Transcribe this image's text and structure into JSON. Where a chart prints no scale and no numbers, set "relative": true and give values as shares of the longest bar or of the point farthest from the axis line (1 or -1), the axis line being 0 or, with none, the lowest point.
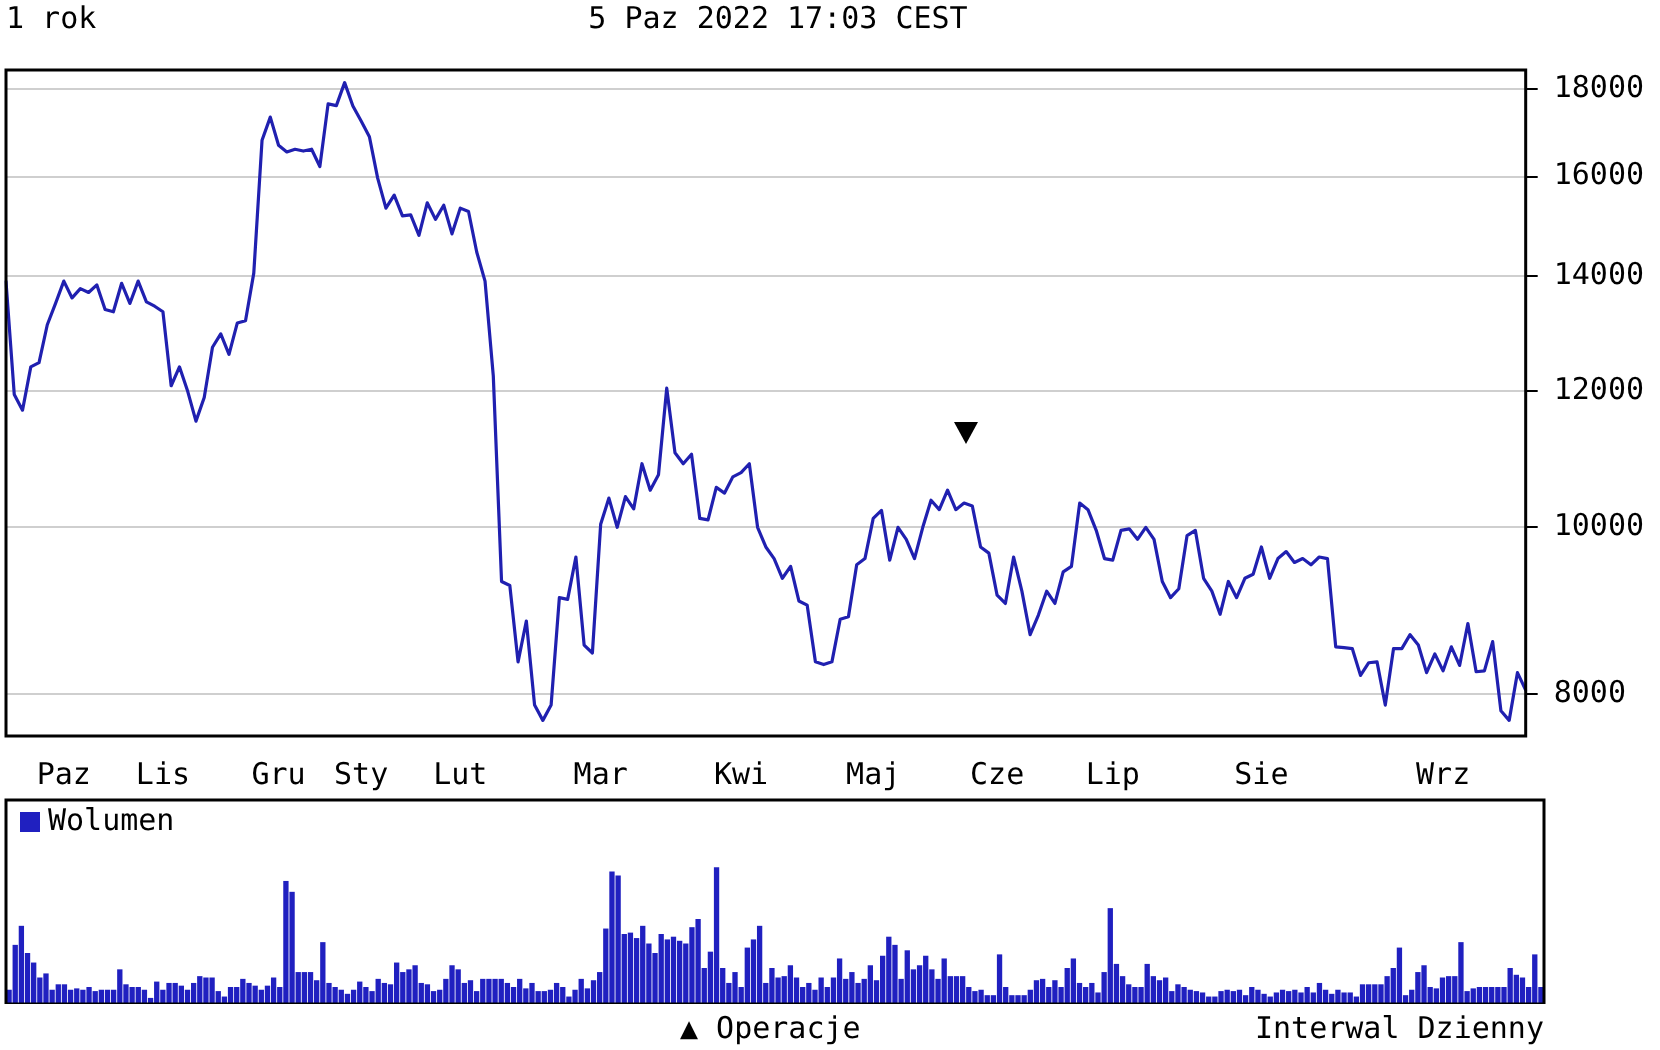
{
  "chart_data": [
    {
      "type": "line",
      "title": "1 rok",
      "subtitle": "5 Paz 2022 17:03 CEST",
      "categories": [
        null,
        null,
        null,
        null,
        null,
        null,
        null,
        "Paz",
        null,
        null,
        null,
        null,
        null,
        null,
        null,
        null,
        null,
        null,
        null,
        "Lis",
        null,
        null,
        null,
        null,
        null,
        null,
        null,
        null,
        null,
        null,
        null,
        null,
        null,
        "Gru",
        null,
        null,
        null,
        null,
        null,
        null,
        null,
        null,
        null,
        "Sty",
        null,
        null,
        null,
        null,
        null,
        null,
        null,
        null,
        null,
        null,
        null,
        "Lut",
        null,
        null,
        null,
        null,
        null,
        null,
        null,
        null,
        null,
        null,
        null,
        null,
        null,
        null,
        null,
        null,
        "Mar",
        null,
        null,
        null,
        null,
        null,
        null,
        null,
        null,
        null,
        null,
        null,
        null,
        null,
        null,
        null,
        null,
        "Kwi",
        null,
        null,
        null,
        null,
        null,
        null,
        null,
        null,
        null,
        null,
        null,
        null,
        null,
        null,
        null,
        "Maj",
        null,
        null,
        null,
        null,
        null,
        null,
        null,
        null,
        null,
        null,
        null,
        null,
        null,
        null,
        "Cze",
        null,
        null,
        null,
        null,
        null,
        null,
        null,
        null,
        null,
        null,
        null,
        null,
        null,
        "Lip",
        null,
        null,
        null,
        null,
        null,
        null,
        null,
        null,
        null,
        null,
        null,
        null,
        null,
        null,
        null,
        null,
        null,
        "Sie",
        null,
        null,
        null,
        null,
        null,
        null,
        null,
        null,
        null,
        null,
        null,
        null,
        null,
        null,
        null,
        null,
        null,
        null,
        null,
        null,
        null,
        "Wrz",
        null,
        null,
        null,
        null,
        null,
        null,
        null,
        null,
        null,
        null
      ],
      "series": [
        {
          "color": "#2020b0",
          "values": [
            13900,
            11950,
            11700,
            12400,
            12470,
            13120,
            13500,
            13910,
            13600,
            13770,
            13700,
            13840,
            13390,
            13350,
            13870,
            13500,
            13910,
            13530,
            13450,
            13350,
            12090,
            12400,
            12000,
            11530,
            11900,
            12730,
            12960,
            12610,
            13150,
            13190,
            14060,
            16800,
            17330,
            16690,
            16540,
            16600,
            16560,
            16600,
            16220,
            17640,
            17600,
            18150,
            17590,
            17240,
            16880,
            15970,
            15340,
            15610,
            15180,
            15200,
            14790,
            15450,
            15110,
            15400,
            14820,
            15340,
            15270,
            14460,
            13910,
            12250,
            9300,
            9250,
            8350,
            8820,
            7880,
            7720,
            7880,
            9100,
            9080,
            9610,
            8540,
            8450,
            10040,
            10400,
            10000,
            10420,
            10250,
            10890,
            10510,
            10730,
            12050,
            11050,
            10890,
            11030,
            10120,
            10100,
            10550,
            10470,
            10700,
            10760,
            10890,
            10000,
            9740,
            9590,
            9340,
            9490,
            9060,
            9010,
            8350,
            8320,
            8350,
            8840,
            8870,
            9510,
            9590,
            10120,
            10230,
            9570,
            10000,
            9840,
            9590,
            10000,
            10370,
            10240,
            10510,
            10240,
            10330,
            10290,
            9740,
            9660,
            9130,
            9030,
            9610,
            9180,
            8660,
            8890,
            9180,
            9030,
            9420,
            9490,
            10330,
            10240,
            9960,
            9590,
            9570,
            9960,
            9980,
            9840,
            10000,
            9840,
            9300,
            9100,
            9210,
            9890,
            9960,
            9340,
            9180,
            8900,
            9300,
            9100,
            9340,
            9390,
            9740,
            9340,
            9590,
            9680,
            9540,
            9590,
            9510,
            9610,
            9590,
            8520,
            8510,
            8500,
            8200,
            8340,
            8350,
            7880,
            8500,
            8500,
            8660,
            8540,
            8230,
            8440,
            8250,
            8520,
            8310,
            8790,
            8240,
            8250,
            8580,
            7820,
            7720,
            8230,
            8040
          ]
        }
      ],
      "ylim": [
        7560,
        18460
      ],
      "yticks": [
        8000,
        10000,
        12000,
        14000,
        16000,
        18000
      ],
      "log": true,
      "grid": "y",
      "marker": "none",
      "line_style": "solid"
    },
    {
      "type": "bar",
      "relative": true,
      "legend": "top left",
      "tick_labels": false,
      "annotations": [
        "▲ Operacje",
        "Interwal Dzienny"
      ],
      "categories": [
        null,
        null,
        null,
        null,
        null,
        null,
        null,
        null,
        null,
        null,
        null,
        null,
        null,
        null,
        null,
        null,
        null,
        null,
        null,
        null,
        null,
        null,
        null,
        null,
        null,
        null,
        null,
        null,
        null,
        null,
        null,
        null,
        null,
        null,
        null,
        null,
        null,
        null,
        null,
        null,
        null,
        null,
        null,
        null,
        null,
        null,
        null,
        null,
        null,
        null,
        null,
        null,
        null,
        null,
        null,
        null,
        null,
        null,
        null,
        null,
        null,
        null,
        null,
        null,
        null,
        null,
        null,
        null,
        null,
        null,
        null,
        null,
        null,
        null,
        null,
        null,
        null,
        null,
        null,
        null,
        null,
        null,
        null,
        null,
        null,
        null,
        null,
        null,
        null,
        null,
        null,
        null,
        null,
        null,
        null,
        null,
        null,
        null,
        null,
        null,
        null,
        null,
        null,
        null,
        null,
        null,
        null,
        null,
        null,
        null,
        null,
        null,
        null,
        null,
        null,
        null,
        null,
        null,
        null,
        null,
        null,
        null,
        null,
        null,
        null,
        null,
        null,
        null,
        null,
        null,
        null,
        null,
        null,
        null,
        null,
        null,
        null,
        null,
        null,
        null,
        null,
        null,
        null,
        null,
        null,
        null,
        null,
        null,
        null,
        null,
        null,
        null,
        null,
        null,
        null,
        null,
        null,
        null,
        null,
        null,
        null,
        null,
        null,
        null,
        null,
        null,
        null,
        null,
        null,
        null,
        null,
        null,
        null,
        null,
        null,
        null,
        null,
        null,
        null,
        null,
        null,
        null,
        null,
        null,
        null,
        null,
        null,
        null,
        null,
        null,
        null,
        null,
        null,
        null,
        null,
        null,
        null,
        null,
        null,
        null,
        null,
        null,
        null,
        null,
        null,
        null,
        null,
        null,
        null,
        null,
        null,
        null,
        null,
        null,
        null,
        null,
        null,
        null,
        null,
        null,
        null,
        null,
        null,
        null,
        null,
        null,
        null,
        null,
        null,
        null,
        null,
        null,
        null,
        null,
        null,
        null,
        null,
        null,
        null,
        null,
        null,
        null,
        null,
        null,
        null,
        null,
        null,
        null,
        null,
        null
      ],
      "series": [
        {
          "name": "Wolumen",
          "color": "#2020c0",
          "values": [
            0.1,
            0.43,
            0.57,
            0.37,
            0.3,
            0.19,
            0.22,
            0.1,
            0.14,
            0.14,
            0.1,
            0.11,
            0.1,
            0.12,
            0.09,
            0.1,
            0.1,
            0.1,
            0.25,
            0.14,
            0.12,
            0.12,
            0.1,
            0.04,
            0.16,
            0.1,
            0.15,
            0.15,
            0.13,
            0.1,
            0.15,
            0.2,
            0.19,
            0.19,
            0.09,
            0.05,
            0.12,
            0.12,
            0.18,
            0.15,
            0.13,
            0.1,
            0.13,
            0.19,
            0.12,
            0.9,
            0.82,
            0.23,
            0.23,
            0.23,
            0.17,
            0.45,
            0.15,
            0.12,
            0.1,
            0.07,
            0.1,
            0.16,
            0.12,
            0.09,
            0.18,
            0.15,
            0.14,
            0.3,
            0.23,
            0.25,
            0.28,
            0.15,
            0.14,
            0.09,
            0.1,
            0.18,
            0.28,
            0.25,
            0.15,
            0.17,
            0.09,
            0.18,
            0.18,
            0.18,
            0.18,
            0.15,
            0.12,
            0.18,
            0.11,
            0.15,
            0.09,
            0.09,
            0.1,
            0.15,
            0.12,
            0.05,
            0.1,
            0.18,
            0.11,
            0.17,
            0.23,
            0.55,
            0.97,
            0.94,
            0.51,
            0.52,
            0.48,
            0.57,
            0.44,
            0.37,
            0.51,
            0.47,
            0.49,
            0.46,
            0.44,
            0.56,
            0.62,
            0.26,
            0.38,
            1,
            0.26,
            0.15,
            0.23,
            0.12,
            0.41,
            0.47,
            0.57,
            0.15,
            0.26,
            0.19,
            0.2,
            0.28,
            0.19,
            0.12,
            0.15,
            0.1,
            0.19,
            0.12,
            0.19,
            0.33,
            0.18,
            0.23,
            0.15,
            0.18,
            0.28,
            0.17,
            0.35,
            0.49,
            0.43,
            0.18,
            0.39,
            0.25,
            0.28,
            0.35,
            0.25,
            0.18,
            0.33,
            0.2,
            0.2,
            0.2,
            0.12,
            0.09,
            0.1,
            0.06,
            0.06,
            0.36,
            0.12,
            0.06,
            0.06,
            0.06,
            0.1,
            0.17,
            0.18,
            0.12,
            0.17,
            0.12,
            0.26,
            0.33,
            0.15,
            0.12,
            0.15,
            0.08,
            0.23,
            0.7,
            0.29,
            0.2,
            0.14,
            0.12,
            0.12,
            0.29,
            0.2,
            0.17,
            0.19,
            0.09,
            0.14,
            0.12,
            0.1,
            0.09,
            0.08,
            0.05,
            0.05,
            0.09,
            0.1,
            0.09,
            0.1,
            0.06,
            0.12,
            0.1,
            0.07,
            0.05,
            0.08,
            0.1,
            0.09,
            0.1,
            0.08,
            0.12,
            0.08,
            0.15,
            0.1,
            0.07,
            0.1,
            0.08,
            0.08,
            0.05,
            0.14,
            0.14,
            0.14,
            0.14,
            0.2,
            0.26,
            0.41,
            0.06,
            0.1,
            0.23,
            0.28,
            0.12,
            0.11,
            0.19,
            0.2,
            0.2,
            0.45,
            0.09,
            0.11,
            0.12,
            0.12,
            0.12,
            0.12,
            0.12,
            0.26,
            0.21,
            0.19,
            0.12,
            0.36,
            0.12
          ]
        }
      ]
    }
  ]
}
